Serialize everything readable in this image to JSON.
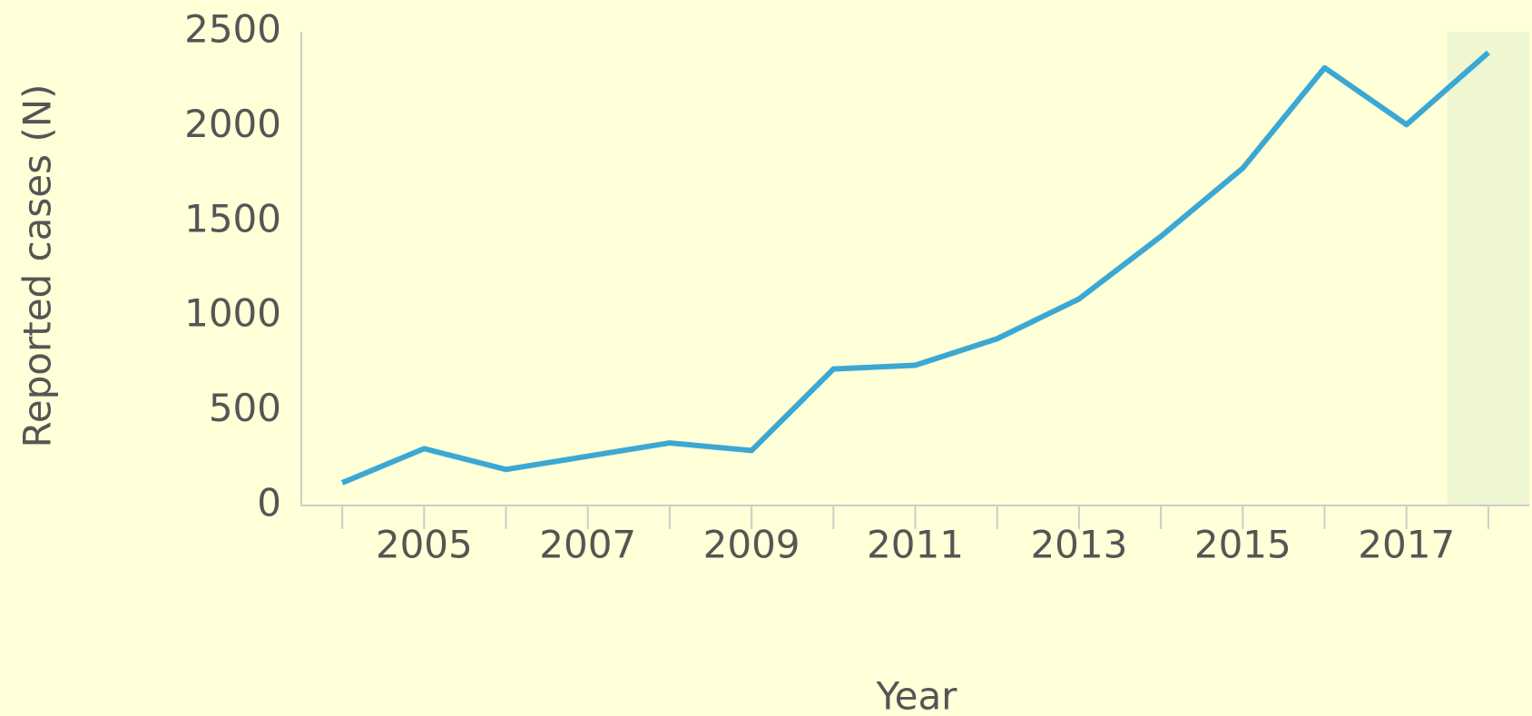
{
  "chart_data": {
    "type": "line",
    "x_label": "Year",
    "y_label": "Reported cases (N)",
    "x": [
      2004,
      2005,
      2006,
      2007,
      2008,
      2009,
      2010,
      2011,
      2012,
      2013,
      2014,
      2015,
      2016,
      2017,
      2018
    ],
    "series": [
      {
        "name": "Reported cases",
        "color": "#3ba8d4",
        "values": [
          120,
          300,
          190,
          260,
          330,
          290,
          720,
          740,
          880,
          1090,
          1420,
          1780,
          2310,
          2010,
          2390
        ]
      }
    ],
    "xlim": [
      2003.5,
      2018.5
    ],
    "xticks": [
      2005,
      2007,
      2009,
      2011,
      2013,
      2015,
      2017
    ],
    "ylim": [
      0,
      2500
    ],
    "yticks": [
      0,
      500,
      1000,
      1500,
      2000,
      2500
    ],
    "highlight_x": 2018,
    "grid": false
  }
}
